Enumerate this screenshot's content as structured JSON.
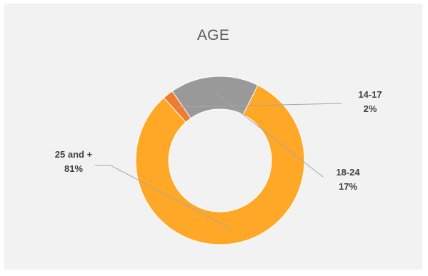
{
  "chart_data": {
    "type": "pie",
    "style": "donut",
    "title": "AGE",
    "categories": [
      "25 and +",
      "14-17",
      "18-24"
    ],
    "values": [
      81,
      2,
      17
    ],
    "value_labels": [
      "81%",
      "2%",
      "17%"
    ],
    "colors": [
      "#ffa726",
      "#ee7d31",
      "#999999"
    ],
    "legend": "none"
  }
}
